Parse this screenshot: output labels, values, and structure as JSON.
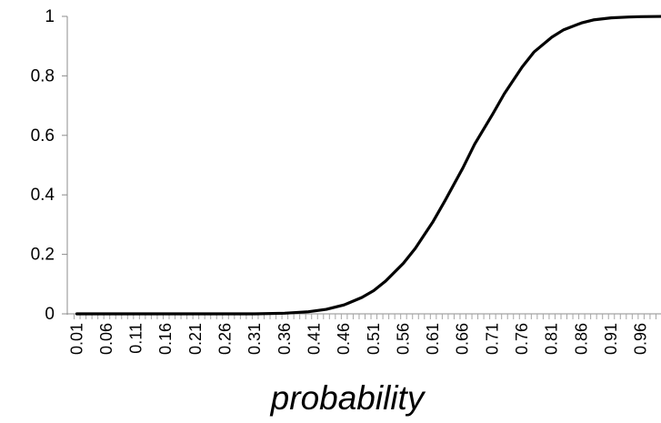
{
  "chart_data": {
    "type": "line",
    "title": "",
    "xlabel": "probability",
    "ylabel": "",
    "ylim": [
      0,
      1
    ],
    "yticks": [
      "0",
      "0.2",
      "0.4",
      "0.6",
      "0.8",
      "1"
    ],
    "x_tick_labels": [
      "0.01",
      "0.06",
      "0.11",
      "0.16",
      "0.21",
      "0.26",
      "0.31",
      "0.36",
      "0.41",
      "0.46",
      "0.51",
      "0.56",
      "0.61",
      "0.66",
      "0.71",
      "0.76",
      "0.81",
      "0.86",
      "0.91",
      "0.96"
    ],
    "grid": false,
    "legend": "none",
    "series": [
      {
        "color": "#000000",
        "x": [
          0.01,
          0.06,
          0.11,
          0.16,
          0.21,
          0.26,
          0.31,
          0.36,
          0.4,
          0.43,
          0.46,
          0.49,
          0.51,
          0.53,
          0.56,
          0.58,
          0.61,
          0.63,
          0.66,
          0.68,
          0.71,
          0.73,
          0.76,
          0.78,
          0.81,
          0.83,
          0.86,
          0.88,
          0.91,
          0.94,
          0.96,
          1.0
        ],
        "y": [
          0,
          0,
          0,
          0,
          0,
          0,
          0,
          0.002,
          0.007,
          0.015,
          0.03,
          0.055,
          0.078,
          0.11,
          0.17,
          0.22,
          0.31,
          0.38,
          0.49,
          0.57,
          0.67,
          0.74,
          0.83,
          0.88,
          0.93,
          0.955,
          0.978,
          0.988,
          0.995,
          0.998,
          0.999,
          1.0
        ]
      }
    ]
  }
}
